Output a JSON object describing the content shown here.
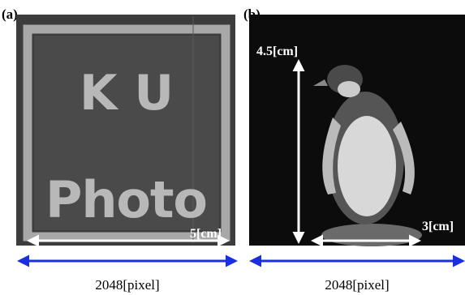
{
  "panels": [
    {
      "label": "(a)",
      "image_text": [
        "K U",
        "Photo"
      ],
      "width_label": "5[cm]",
      "pixel_label": "2048[pixel]"
    },
    {
      "label": "(b)",
      "height_label": "4.5[cm]",
      "width_label": "3[cm]",
      "pixel_label": "2048[pixel]"
    }
  ]
}
